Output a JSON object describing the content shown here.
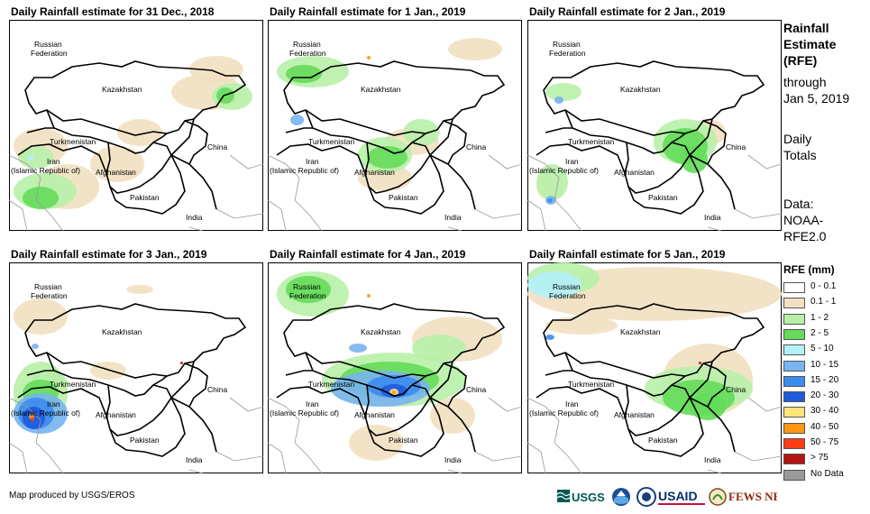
{
  "panels": [
    {
      "title": "Daily Rainfall estimate for 31 Dec., 2018",
      "rain": "d31"
    },
    {
      "title": "Daily Rainfall estimate for 1 Jan., 2019",
      "rain": "j1"
    },
    {
      "title": "Daily Rainfall estimate for 2 Jan., 2019",
      "rain": "j2"
    },
    {
      "title": "Daily Rainfall estimate for 3 Jan., 2019",
      "rain": "j3"
    },
    {
      "title": "Daily Rainfall estimate for 4 Jan., 2019",
      "rain": "j4"
    },
    {
      "title": "Daily Rainfall estimate for 5 Jan., 2019",
      "rain": "j5"
    }
  ],
  "map_labels": {
    "russia_1": "Russian",
    "russia_2": "Federation",
    "kazakhstan": "Kazakhstan",
    "turkmenistan": "Turkmenistan",
    "iran_1": "Iran",
    "iran_2": "(Islamic Republic of)",
    "afghanistan": "Afghanistan",
    "pakistan": "Pakistan",
    "china": "China",
    "india": "India"
  },
  "side": {
    "line1": "Rainfall",
    "line2": "Estimate",
    "line3": "(RFE)",
    "line4": "through",
    "line5": "Jan 5, 2019",
    "line6": "Daily",
    "line7": "Totals",
    "line8": "Data:",
    "line9": "NOAA-",
    "line10": "RFE2.0"
  },
  "legend": {
    "title": "RFE (mm)",
    "items": [
      {
        "label": "0 - 0.1",
        "color": "#ffffff"
      },
      {
        "label": "0.1 - 1",
        "color": "#f2e0c0"
      },
      {
        "label": "1 - 2",
        "color": "#b8f0a8"
      },
      {
        "label": "2 - 5",
        "color": "#64dc5a"
      },
      {
        "label": "5 - 10",
        "color": "#b4f0f8"
      },
      {
        "label": "10 - 15",
        "color": "#78b4f0"
      },
      {
        "label": "15 - 20",
        "color": "#3c8cf0"
      },
      {
        "label": "20 - 30",
        "color": "#1e5adc"
      },
      {
        "label": "30 - 40",
        "color": "#ffe678"
      },
      {
        "label": "40 - 50",
        "color": "#ff9614"
      },
      {
        "label": "50 - 75",
        "color": "#ff3c14"
      },
      {
        "label": "> 75",
        "color": "#b41414"
      },
      {
        "label": "No Data",
        "color": "#999999"
      }
    ]
  },
  "credit": "Map produced by USGS/EROS",
  "logos": {
    "usgs": "USGS",
    "usaid": "USAID",
    "fewsnet": "FEWS NET"
  }
}
